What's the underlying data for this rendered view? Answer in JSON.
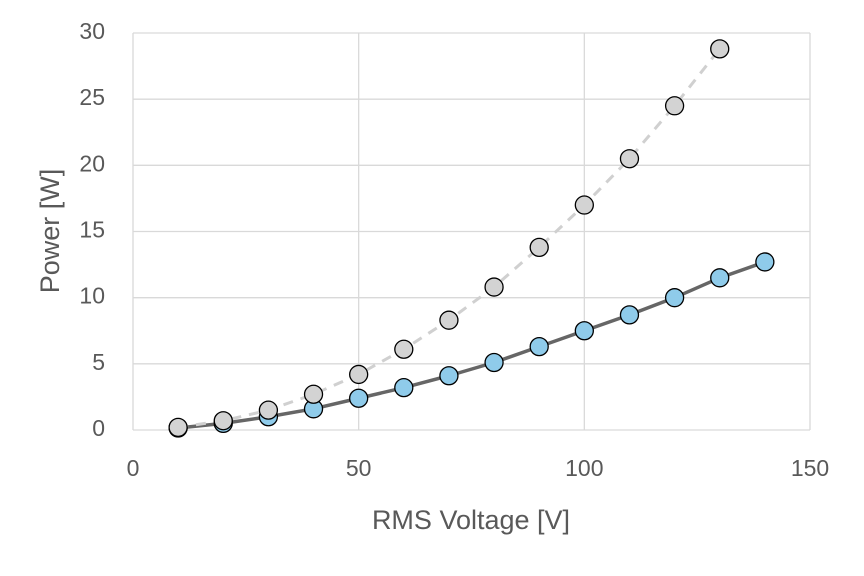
{
  "chart_data": {
    "type": "scatter",
    "x_label": "RMS Voltage [V]",
    "y_label": "Power [W]",
    "xlim": [
      0,
      150
    ],
    "xticks": [
      0,
      50,
      100,
      150
    ],
    "ylim": [
      0,
      30
    ],
    "yticks": [
      0,
      5,
      10,
      15,
      20,
      25,
      30
    ],
    "grid": true,
    "series": [
      {
        "color": "#8fcbea",
        "line_color": "#666666",
        "line_style": "solid",
        "x": [
          10,
          20,
          30,
          40,
          50,
          60,
          70,
          80,
          90,
          100,
          110,
          120,
          130,
          140
        ],
        "values": [
          0.15,
          0.5,
          1.0,
          1.6,
          2.4,
          3.2,
          4.1,
          5.1,
          6.3,
          7.5,
          8.7,
          10.0,
          11.5,
          12.7
        ]
      },
      {
        "color": "#d3d3d3",
        "line_color": "#d0d0d0",
        "line_style": "dashed",
        "x": [
          10,
          20,
          30,
          40,
          50,
          60,
          70,
          80,
          90,
          100,
          110,
          120,
          130
        ],
        "values": [
          0.2,
          0.7,
          1.5,
          2.7,
          4.2,
          6.1,
          8.3,
          10.8,
          13.8,
          17.0,
          20.5,
          24.5,
          28.8
        ]
      }
    ]
  }
}
